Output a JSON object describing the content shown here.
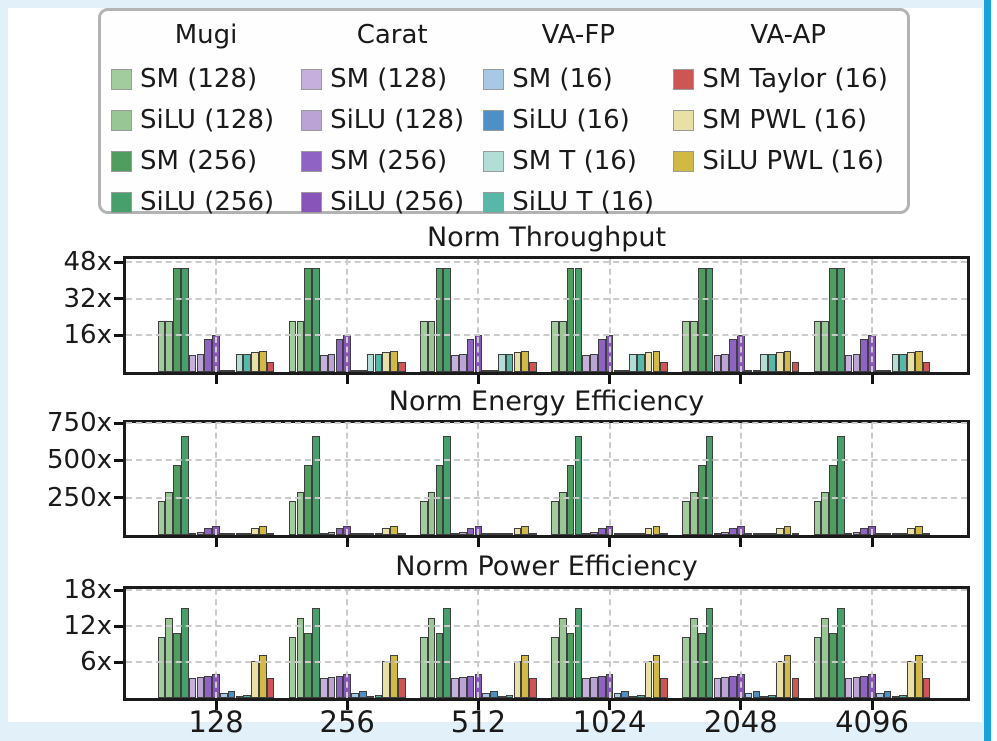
{
  "page": {
    "outer_background": "#e2f1f9",
    "panel_background": "#ffffff",
    "scrollbar_color": "#16a2db",
    "grid_color": "#cbcbcb",
    "spine_color": "#1b1b1b",
    "bar_edge_color": "#3f3f3f",
    "legend_border_color": "#b3b3b3"
  },
  "legend": {
    "columns": [
      {
        "header": "Mugi",
        "items": [
          {
            "label": "SM (128)",
            "color": "#a2cc9e"
          },
          {
            "label": "SiLU (128)",
            "color": "#98c795"
          },
          {
            "label": "SM (256)",
            "color": "#4f9e5f"
          },
          {
            "label": "SiLU (256)",
            "color": "#47a06c"
          }
        ]
      },
      {
        "header": "Carat",
        "items": [
          {
            "label": "SM (128)",
            "color": "#c6afdc"
          },
          {
            "label": "SiLU (128)",
            "color": "#bca3d6"
          },
          {
            "label": "SM (256)",
            "color": "#8f63c3"
          },
          {
            "label": "SiLU (256)",
            "color": "#8854ba"
          }
        ]
      },
      {
        "header": "VA-FP",
        "items": [
          {
            "label": "SM (16)",
            "color": "#a7c9e6"
          },
          {
            "label": "SiLU (16)",
            "color": "#4e8fc5"
          },
          {
            "label": "SM T (16)",
            "color": "#b3ded6"
          },
          {
            "label": "SiLU T (16)",
            "color": "#58b8a7"
          }
        ]
      },
      {
        "header": "VA-AP",
        "items": [
          {
            "label": "SM Taylor (16)",
            "color": "#cd5553"
          },
          {
            "label": "SM PWL (16)",
            "color": "#e8e0a6"
          },
          {
            "label": "SiLU PWL (16)",
            "color": "#d2b845"
          }
        ]
      }
    ]
  },
  "chart_data": [
    {
      "type": "bar",
      "title": "Norm Throughput",
      "categories": [
        "128",
        "256",
        "512",
        "1024",
        "2048",
        "4096"
      ],
      "ylim": [
        0,
        49.5
      ],
      "yticks": [
        {
          "label": "16x",
          "value": 16
        },
        {
          "label": "32x",
          "value": 32
        },
        {
          "label": "48x",
          "value": 48
        }
      ],
      "grid": true,
      "show_x_labels": false,
      "series": [
        {
          "name": "Mugi SM (128)",
          "color": "#a2cc9e",
          "values": [
            22.5,
            22.5,
            22.5,
            22.5,
            22.5,
            22.5
          ]
        },
        {
          "name": "Mugi SiLU (128)",
          "color": "#98c795",
          "values": [
            22.5,
            22.5,
            22.5,
            22.5,
            22.5,
            22.5
          ]
        },
        {
          "name": "Mugi SM (256)",
          "color": "#4f9e5f",
          "values": [
            45.5,
            45.5,
            45.5,
            45.5,
            45.5,
            45.5
          ]
        },
        {
          "name": "Mugi SiLU (256)",
          "color": "#47a06c",
          "values": [
            45.5,
            45.5,
            45.5,
            45.5,
            45.5,
            45.5
          ]
        },
        {
          "name": "Carat SM (128)",
          "color": "#c6afdc",
          "values": [
            7.5,
            7.5,
            7.5,
            7.5,
            7.5,
            7.5
          ]
        },
        {
          "name": "Carat SiLU (128)",
          "color": "#bca3d6",
          "values": [
            7.8,
            7.8,
            7.8,
            7.8,
            7.8,
            7.8
          ]
        },
        {
          "name": "Carat SM (256)",
          "color": "#8f63c3",
          "values": [
            14.5,
            14.5,
            14.5,
            14.5,
            14.5,
            14.5
          ]
        },
        {
          "name": "Carat SiLU (256)",
          "color": "#8854ba",
          "values": [
            16,
            16,
            16,
            16,
            16,
            16
          ]
        },
        {
          "name": "VA-FP SM (16)",
          "color": "#a7c9e6",
          "values": [
            0.5,
            0.5,
            0.5,
            0.5,
            0.5,
            0.5
          ]
        },
        {
          "name": "VA-FP SiLU (16)",
          "color": "#4e8fc5",
          "values": [
            0.7,
            0.7,
            0.7,
            0.7,
            0.7,
            0.7
          ]
        },
        {
          "name": "VA-FP SM T (16)",
          "color": "#b3ded6",
          "values": [
            7.8,
            7.8,
            7.8,
            7.8,
            7.8,
            7.8
          ]
        },
        {
          "name": "VA-FP SiLU T (16)",
          "color": "#58b8a7",
          "values": [
            8,
            8,
            8,
            8,
            8,
            8
          ]
        },
        {
          "name": "VA-AP SM PWL (16)",
          "color": "#e8e0a6",
          "values": [
            8.8,
            8.8,
            8.8,
            8.8,
            8.8,
            8.8
          ]
        },
        {
          "name": "VA-AP SiLU PWL (16)",
          "color": "#d2b845",
          "values": [
            9,
            9,
            9,
            9,
            9,
            9
          ]
        },
        {
          "name": "VA-AP SM Taylor (16)",
          "color": "#cd5553",
          "values": [
            4.2,
            4.2,
            4.2,
            4.2,
            4.2,
            4.2
          ]
        }
      ]
    },
    {
      "type": "bar",
      "title": "Norm Energy Efficiency",
      "categories": [
        "128",
        "256",
        "512",
        "1024",
        "2048",
        "4096"
      ],
      "ylim": [
        0,
        750
      ],
      "yticks": [
        {
          "label": "250x",
          "value": 250
        },
        {
          "label": "500x",
          "value": 500
        },
        {
          "label": "750x",
          "value": 750
        }
      ],
      "grid": true,
      "show_x_labels": false,
      "series": [
        {
          "name": "Mugi SM (128)",
          "color": "#a2cc9e",
          "values": [
            225,
            225,
            225,
            225,
            225,
            225
          ]
        },
        {
          "name": "Mugi SiLU (128)",
          "color": "#98c795",
          "values": [
            290,
            290,
            290,
            290,
            290,
            290
          ]
        },
        {
          "name": "Mugi SM (256)",
          "color": "#4f9e5f",
          "values": [
            470,
            470,
            470,
            470,
            470,
            470
          ]
        },
        {
          "name": "Mugi SiLU (256)",
          "color": "#47a06c",
          "values": [
            660,
            660,
            660,
            660,
            660,
            660
          ]
        },
        {
          "name": "Carat SM (128)",
          "color": "#c6afdc",
          "values": [
            15,
            15,
            15,
            15,
            15,
            15
          ]
        },
        {
          "name": "Carat SiLU (128)",
          "color": "#bca3d6",
          "values": [
            20,
            20,
            20,
            20,
            20,
            20
          ]
        },
        {
          "name": "Carat SM (256)",
          "color": "#8f63c3",
          "values": [
            45,
            45,
            45,
            45,
            45,
            45
          ]
        },
        {
          "name": "Carat SiLU (256)",
          "color": "#8854ba",
          "values": [
            62,
            62,
            62,
            62,
            62,
            62
          ]
        },
        {
          "name": "VA-FP SM (16)",
          "color": "#a7c9e6",
          "values": [
            3,
            3,
            3,
            3,
            3,
            3
          ]
        },
        {
          "name": "VA-FP SiLU (16)",
          "color": "#4e8fc5",
          "values": [
            4,
            4,
            4,
            4,
            4,
            4
          ]
        },
        {
          "name": "VA-FP SM T (16)",
          "color": "#b3ded6",
          "values": [
            5,
            5,
            5,
            5,
            5,
            5
          ]
        },
        {
          "name": "VA-FP SiLU T (16)",
          "color": "#58b8a7",
          "values": [
            6,
            6,
            6,
            6,
            6,
            6
          ]
        },
        {
          "name": "VA-AP SM PWL (16)",
          "color": "#e8e0a6",
          "values": [
            48,
            48,
            48,
            48,
            48,
            48
          ]
        },
        {
          "name": "VA-AP SiLU PWL (16)",
          "color": "#d2b845",
          "values": [
            58,
            58,
            58,
            58,
            58,
            58
          ]
        },
        {
          "name": "VA-AP SM Taylor (16)",
          "color": "#cd5553",
          "values": [
            9,
            9,
            9,
            9,
            9,
            9
          ]
        }
      ]
    },
    {
      "type": "bar",
      "title": "Norm Power Efficiency",
      "categories": [
        "128",
        "256",
        "512",
        "1024",
        "2048",
        "4096"
      ],
      "ylim": [
        0,
        18.2
      ],
      "yticks": [
        {
          "label": "6x",
          "value": 6
        },
        {
          "label": "12x",
          "value": 12
        },
        {
          "label": "18x",
          "value": 18
        }
      ],
      "grid": true,
      "show_x_labels": true,
      "series": [
        {
          "name": "Mugi SM (128)",
          "color": "#a2cc9e",
          "values": [
            10.2,
            10.2,
            10.2,
            10.2,
            10.2,
            10.2
          ]
        },
        {
          "name": "Mugi SiLU (128)",
          "color": "#98c795",
          "values": [
            13.4,
            13.4,
            13.4,
            13.4,
            13.4,
            13.4
          ]
        },
        {
          "name": "Mugi SM (256)",
          "color": "#4f9e5f",
          "values": [
            10.9,
            10.9,
            10.9,
            10.9,
            10.9,
            10.9
          ]
        },
        {
          "name": "Mugi SiLU (256)",
          "color": "#47a06c",
          "values": [
            15,
            15,
            15,
            15,
            15,
            15
          ]
        },
        {
          "name": "Carat SM (128)",
          "color": "#c6afdc",
          "values": [
            3.4,
            3.4,
            3.4,
            3.4,
            3.4,
            3.4
          ]
        },
        {
          "name": "Carat SiLU (128)",
          "color": "#bca3d6",
          "values": [
            3.5,
            3.5,
            3.5,
            3.5,
            3.5,
            3.5
          ]
        },
        {
          "name": "Carat SM (256)",
          "color": "#8f63c3",
          "values": [
            3.6,
            3.6,
            3.6,
            3.6,
            3.6,
            3.6
          ]
        },
        {
          "name": "Carat SiLU (256)",
          "color": "#8854ba",
          "values": [
            4,
            4,
            4,
            4,
            4,
            4
          ]
        },
        {
          "name": "VA-FP SM (16)",
          "color": "#a7c9e6",
          "values": [
            0.8,
            0.8,
            0.8,
            0.8,
            0.8,
            0.8
          ]
        },
        {
          "name": "VA-FP SiLU (16)",
          "color": "#4e8fc5",
          "values": [
            1.1,
            1.1,
            1.1,
            1.1,
            1.1,
            1.1
          ]
        },
        {
          "name": "VA-FP SM T (16)",
          "color": "#b3ded6",
          "values": [
            0.35,
            0.35,
            0.35,
            0.35,
            0.35,
            0.35
          ]
        },
        {
          "name": "VA-FP SiLU T (16)",
          "color": "#58b8a7",
          "values": [
            0.55,
            0.55,
            0.55,
            0.55,
            0.55,
            0.55
          ]
        },
        {
          "name": "VA-AP SM PWL (16)",
          "color": "#e8e0a6",
          "values": [
            6.2,
            6.2,
            6.2,
            6.2,
            6.2,
            6.2
          ]
        },
        {
          "name": "VA-AP SiLU PWL (16)",
          "color": "#d2b845",
          "values": [
            7.2,
            7.2,
            7.2,
            7.2,
            7.2,
            7.2
          ]
        },
        {
          "name": "VA-AP SM Taylor (16)",
          "color": "#cd5553",
          "values": [
            3.4,
            3.4,
            3.4,
            3.4,
            3.4,
            3.4
          ]
        }
      ]
    }
  ]
}
